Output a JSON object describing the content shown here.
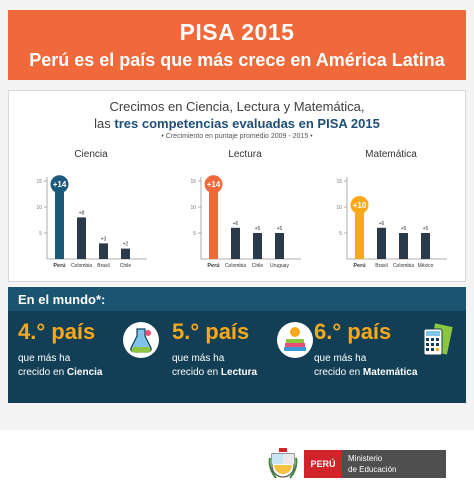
{
  "header": {
    "title": "PISA 2015",
    "subtitle": "Perú es el país que más crece en América Latina"
  },
  "panel": {
    "line1": "Crecimos en Ciencia, Lectura y Matemática,",
    "line2_pre": "las ",
    "line2_bold": "tres competencias evaluadas en PISA 2015",
    "line3": "• Crecimiento en puntaje promedio 2009 - 2015 •"
  },
  "chart_data": [
    {
      "type": "bar",
      "title": "Ciencia",
      "categories": [
        "Perú",
        "Colombia",
        "Brasil",
        "Chile"
      ],
      "values": [
        14,
        8,
        3,
        2
      ],
      "labels": [
        "+14",
        "+8",
        "+3",
        "+2"
      ],
      "ylim": [
        0,
        15
      ],
      "yticks": [
        "15",
        "10",
        "5"
      ],
      "highlight_color": "#1b5a7a"
    },
    {
      "type": "bar",
      "title": "Lectura",
      "categories": [
        "Perú",
        "Colombia",
        "Chile",
        "Uruguay"
      ],
      "values": [
        14,
        6,
        5,
        5
      ],
      "labels": [
        "+14",
        "+6",
        "+5",
        "+5"
      ],
      "ylim": [
        0,
        15
      ],
      "yticks": [
        "15",
        "10",
        "5"
      ],
      "highlight_color": "#f0693a"
    },
    {
      "type": "bar",
      "title": "Matemática",
      "categories": [
        "Perú",
        "Brasil",
        "Colombia",
        "México"
      ],
      "values": [
        10,
        6,
        5,
        5
      ],
      "labels": [
        "+10",
        "+6",
        "+5",
        "+5"
      ],
      "ylim": [
        0,
        15
      ],
      "yticks": [
        "15",
        "10",
        "5"
      ],
      "highlight_color": "#f7a81b"
    }
  ],
  "colors": {
    "other_bar": "#2b3a4a",
    "axis": "#999999"
  },
  "world": {
    "title": "En el mundo*:",
    "cards": [
      {
        "rank": "4.° país",
        "line1": "que más ha",
        "line2_pre": "crecido en ",
        "line2_bold": "Ciencia",
        "icon": "flask-icon"
      },
      {
        "rank": "5.° país",
        "line1": "que más ha",
        "line2_pre": "crecido en ",
        "line2_bold": "Lectura",
        "icon": "book-icon"
      },
      {
        "rank": "6.° país",
        "line1": "que más ha",
        "line2_pre": "crecido en ",
        "line2_bold": "Matemática",
        "icon": "calculator-icon"
      }
    ]
  },
  "footer": {
    "peru": "PERÚ",
    "ministry_line1": "Ministerio",
    "ministry_line2": "de Educación"
  }
}
